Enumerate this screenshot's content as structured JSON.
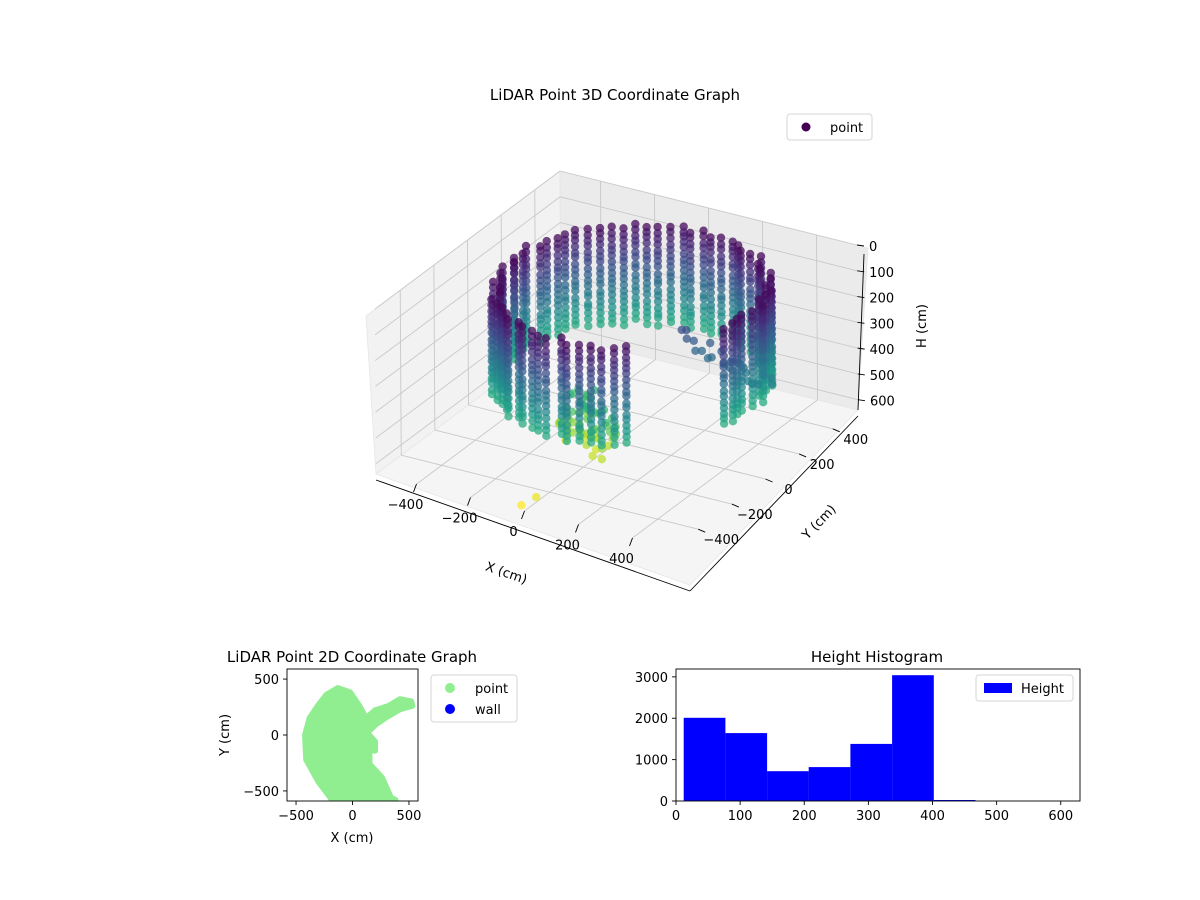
{
  "chart_data": [
    {
      "type": "scatter",
      "title": "LiDAR Point 3D Coordinate Graph",
      "xlabel": "X (cm)",
      "ylabel": "Y (cm)",
      "zlabel": "H (cm)",
      "xticks": [
        -400,
        -200,
        0,
        200,
        400
      ],
      "yticks": [
        -400,
        -200,
        0,
        200,
        400
      ],
      "zticks": [
        0,
        100,
        200,
        300,
        400,
        500,
        600
      ],
      "xlim": [
        -550,
        550
      ],
      "ylim": [
        -550,
        550
      ],
      "zlim": [
        0,
        640
      ],
      "zaxis_inverted": true,
      "grid": true,
      "colormap": "viridis",
      "legend": {
        "placement": "top-right",
        "entries": [
          {
            "name": "point",
            "color": "#440154"
          }
        ]
      },
      "series": [
        {
          "name": "point",
          "description_values": "ring of points radius ~420 cm, heights 0-400 cm, tail of points to H ~640 cm"
        }
      ]
    },
    {
      "type": "scatter",
      "title": "LiDAR Point 2D Coordinate Graph",
      "xlabel": "X (cm)",
      "ylabel": "Y (cm)",
      "xticks": [
        -500,
        0,
        500
      ],
      "yticks": [
        -500,
        0,
        500
      ],
      "xlim": [
        -580,
        580
      ],
      "ylim": [
        -590,
        590
      ],
      "grid": false,
      "legend": {
        "placement": "outside-right",
        "entries": [
          {
            "name": "point",
            "color": "#90ee90"
          },
          {
            "name": "wall",
            "color": "#0000ff"
          }
        ]
      }
    },
    {
      "type": "bar",
      "title": "Height Histogram",
      "xlabel": "",
      "ylabel": "",
      "bin_edges": [
        12,
        77,
        142,
        207,
        272,
        337,
        402,
        467
      ],
      "values": [
        2010,
        1640,
        720,
        820,
        1380,
        3040,
        25
      ],
      "xticks": [
        0,
        100,
        200,
        300,
        400,
        500,
        600
      ],
      "yticks": [
        0,
        1000,
        2000,
        3000
      ],
      "xlim": [
        0,
        630
      ],
      "ylim": [
        0,
        3190
      ],
      "grid": false,
      "legend": {
        "placement": "top-right",
        "entries": [
          {
            "name": "Height",
            "color": "#0000ff"
          }
        ]
      }
    }
  ]
}
